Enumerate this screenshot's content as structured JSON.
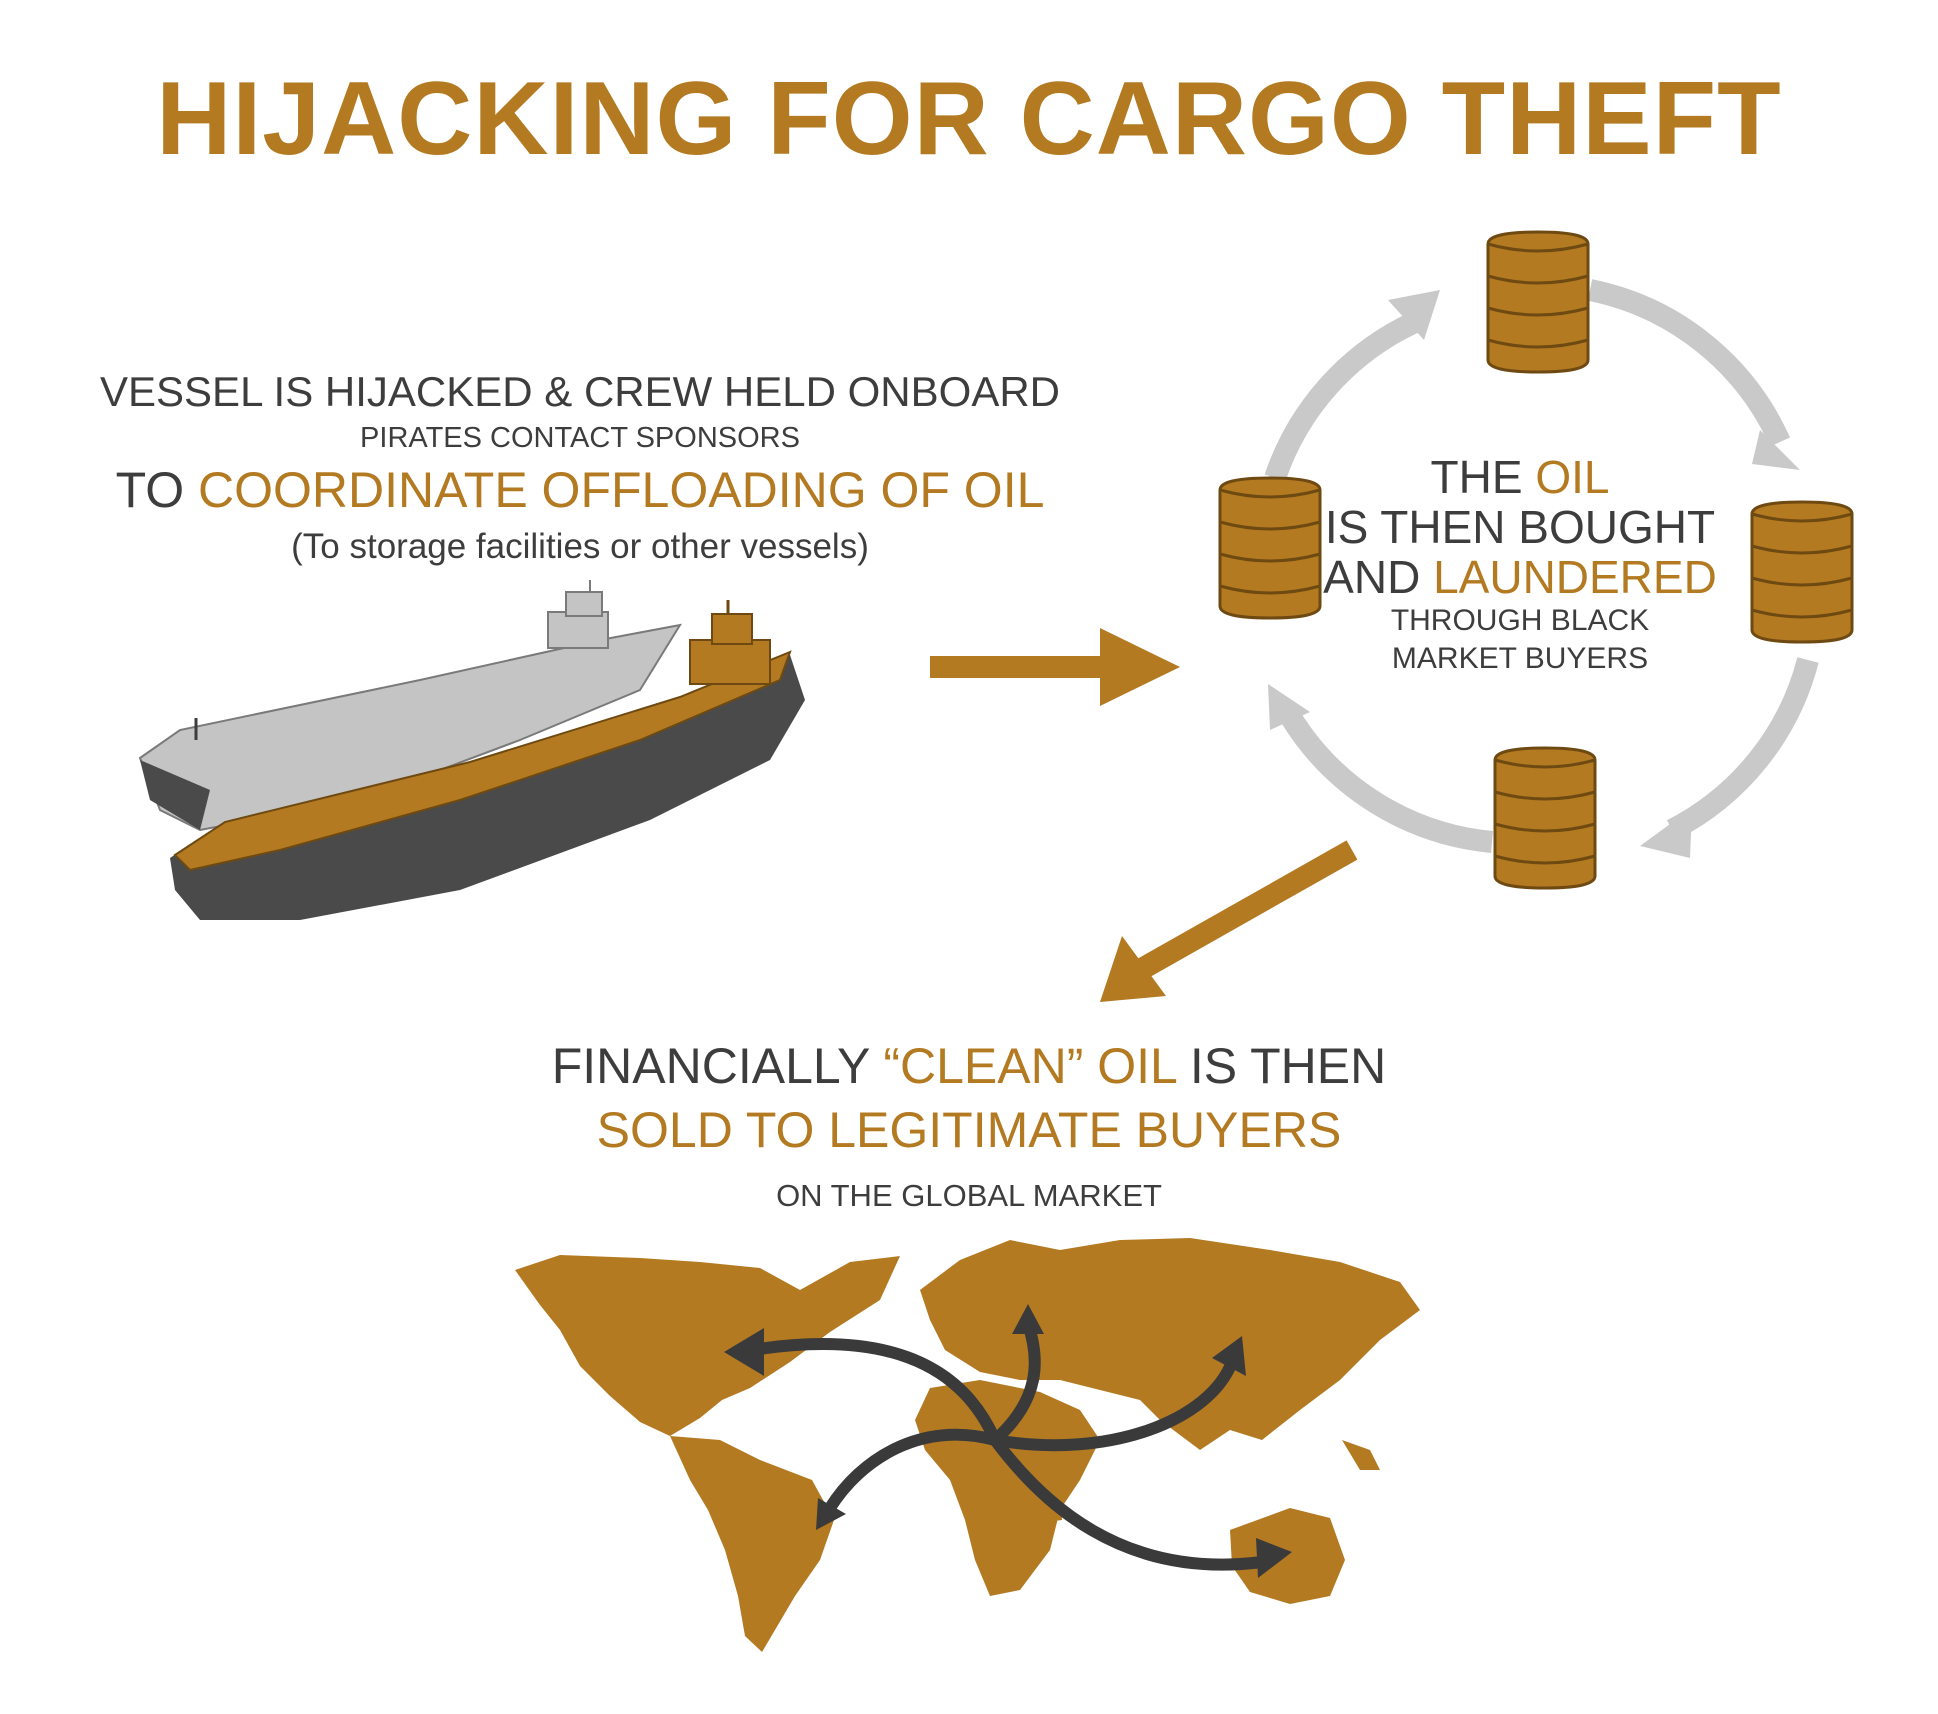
{
  "title": "HIJACKING FOR CARGO THEFT",
  "step1": {
    "line1": "VESSEL IS HIJACKED & CREW HELD ONBOARD",
    "line2": "PIRATES CONTACT SPONSORS",
    "line3_prefix": "TO",
    "line3_highlight": "COORDINATE OFFLOADING OF OIL",
    "line4": "(To storage facilities or other vessels)"
  },
  "step2": {
    "line1_prefix": "THE",
    "line1_highlight": "OIL",
    "line2": "IS THEN BOUGHT",
    "line3_prefix": "AND",
    "line3_highlight": "LAUNDERED",
    "line4": "THROUGH BLACK",
    "line5": "MARKET BUYERS"
  },
  "step3": {
    "line1_prefix": "FINANCIALLY",
    "line1_highlight": "“CLEAN” OIL",
    "line1_suffix": "IS THEN",
    "line2": "SOLD TO LEGITIMATE BUYERS",
    "line3": "ON THE GLOBAL MARKET"
  },
  "colors": {
    "accent": "#b37a21",
    "text_dark": "#3d3d3d",
    "arrow_gray": "#c9c9c9",
    "ship_gray": "#c4c4c4",
    "hull_dark": "#4a4a4a"
  },
  "icons": [
    "oil-barrel-icon",
    "cycle-arrow-icon",
    "flow-arrow-icon",
    "tanker-ship-image",
    "world-map-image",
    "trade-route-arrow-icon"
  ]
}
